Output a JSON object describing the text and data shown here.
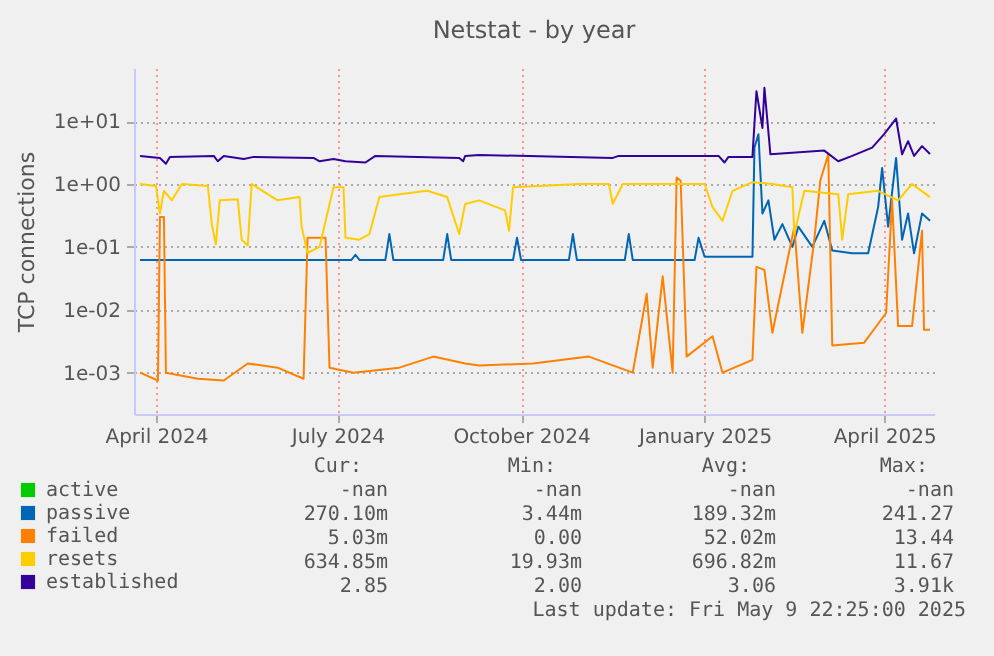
{
  "chart_data": {
    "type": "line",
    "title": "Netstat - by year",
    "ylabel": "TCP connections",
    "log": "y",
    "grid": true,
    "legend": "bottom",
    "xlim": [
      "2024-03-21",
      "2025-04-26"
    ],
    "xticks": [
      {
        "value": "2024-04-01",
        "label": "April 2024"
      },
      {
        "value": "2024-07-01",
        "label": "July 2024"
      },
      {
        "value": "2024-10-01",
        "label": "October 2024"
      },
      {
        "value": "2025-01-01",
        "label": "January 2025"
      },
      {
        "value": "2025-04-01",
        "label": "April 2025"
      }
    ],
    "ylim": [
      0.00022,
      70
    ],
    "yticks": [
      {
        "value": 0.001,
        "label": "1e-03"
      },
      {
        "value": 0.01,
        "label": "1e-02"
      },
      {
        "value": 0.1,
        "label": "1e-01"
      },
      {
        "value": 1,
        "label": "1e+00"
      },
      {
        "value": 10,
        "label": "1e+01"
      }
    ],
    "series": [
      {
        "name": "active",
        "color": "#00cc00"
      },
      {
        "name": "passive",
        "color": "#0066b3",
        "x": [
          "2024-03-24",
          "2024-07-08",
          "2024-07-10",
          "2024-07-12",
          "2024-07-25",
          "2024-07-27",
          "2024-07-29",
          "2024-08-23",
          "2024-08-25",
          "2024-08-27",
          "2024-09-27",
          "2024-09-29",
          "2024-10-01",
          "2024-10-25",
          "2024-10-27",
          "2024-10-29",
          "2024-11-22",
          "2024-11-24",
          "2024-11-26",
          "2024-12-27",
          "2024-12-29",
          "2025-01-01",
          "2025-01-25",
          "2025-01-26",
          "2025-01-28",
          "2025-01-30",
          "2025-02-02",
          "2025-02-05",
          "2025-02-09",
          "2025-02-14",
          "2025-02-17",
          "2025-02-24",
          "2025-03-02",
          "2025-03-06",
          "2025-03-16",
          "2025-03-24",
          "2025-03-29",
          "2025-03-31",
          "2025-04-03",
          "2025-04-07",
          "2025-04-10",
          "2025-04-13",
          "2025-04-16",
          "2025-04-20",
          "2025-04-24"
        ],
        "values": [
          0.062,
          0.062,
          0.075,
          0.062,
          0.062,
          0.16,
          0.062,
          0.062,
          0.16,
          0.062,
          0.062,
          0.14,
          0.062,
          0.062,
          0.16,
          0.062,
          0.062,
          0.16,
          0.062,
          0.062,
          0.14,
          0.07,
          0.07,
          3.8,
          6.2,
          0.34,
          0.55,
          0.13,
          0.23,
          0.1,
          0.21,
          0.1,
          0.26,
          0.088,
          0.079,
          0.079,
          0.43,
          1.8,
          0.21,
          2.6,
          0.13,
          0.34,
          0.079,
          0.34,
          0.26
        ]
      },
      {
        "name": "failed",
        "color": "#ff8000",
        "x": [
          "2024-03-24",
          "2024-04-02",
          "2024-04-03",
          "2024-04-05",
          "2024-04-06",
          "2024-04-22",
          "2024-05-05",
          "2024-05-17",
          "2024-06-01",
          "2024-06-14",
          "2024-06-16",
          "2024-06-25",
          "2024-06-27",
          "2024-07-09",
          "2024-08-01",
          "2024-08-18",
          "2024-09-03",
          "2024-09-10",
          "2024-10-07",
          "2024-11-04",
          "2024-11-26",
          "2024-12-03",
          "2024-12-06",
          "2024-12-11",
          "2024-12-16",
          "2024-12-18",
          "2024-12-20",
          "2024-12-23",
          "2025-01-05",
          "2025-01-10",
          "2025-01-25",
          "2025-01-27",
          "2025-01-31",
          "2025-02-04",
          "2025-02-15",
          "2025-02-19",
          "2025-02-25",
          "2025-02-28",
          "2025-03-04",
          "2025-03-06",
          "2025-03-22",
          "2025-03-29",
          "2025-04-02",
          "2025-04-05",
          "2025-04-08",
          "2025-04-15",
          "2025-04-20",
          "2025-04-21",
          "2025-04-24"
        ],
        "values": [
          0.001,
          0.00075,
          0.3,
          0.3,
          0.001,
          0.0008,
          0.00075,
          0.0014,
          0.0012,
          0.0008,
          0.14,
          0.14,
          0.0012,
          0.001,
          0.0012,
          0.0018,
          0.0014,
          0.0013,
          0.0014,
          0.0018,
          0.001,
          0.018,
          0.0012,
          0.034,
          0.001,
          1.27,
          1.13,
          0.0018,
          0.0038,
          0.001,
          0.0016,
          0.048,
          0.043,
          0.0043,
          0.21,
          0.0043,
          0.13,
          1.13,
          2.97,
          0.0027,
          0.003,
          0.006,
          0.0089,
          0.55,
          0.0055,
          0.0055,
          0.18,
          0.0048,
          0.0048
        ]
      },
      {
        "name": "resets",
        "color": "#ffcc00",
        "x": [
          "2024-03-24",
          "2024-04-01",
          "2024-04-03",
          "2024-04-05",
          "2024-04-09",
          "2024-04-14",
          "2024-04-27",
          "2024-04-29",
          "2024-05-01",
          "2024-05-03",
          "2024-05-12",
          "2024-05-14",
          "2024-05-17",
          "2024-05-19",
          "2024-06-01",
          "2024-06-12",
          "2024-06-13",
          "2024-06-16",
          "2024-06-22",
          "2024-06-29",
          "2024-07-04",
          "2024-07-05",
          "2024-07-12",
          "2024-07-17",
          "2024-07-22",
          "2024-08-01",
          "2024-08-15",
          "2024-08-25",
          "2024-08-31",
          "2024-09-03",
          "2024-09-10",
          "2024-09-23",
          "2024-09-25",
          "2024-09-27",
          "2024-10-30",
          "2024-11-14",
          "2024-11-16",
          "2024-11-21",
          "2025-01-01",
          "2025-01-05",
          "2025-01-10",
          "2025-01-15",
          "2025-01-25",
          "2025-02-04",
          "2025-02-14",
          "2025-02-15",
          "2025-02-20",
          "2025-03-09",
          "2025-03-11",
          "2025-03-14",
          "2025-03-29",
          "2025-04-08",
          "2025-04-15",
          "2025-04-24"
        ],
        "values": [
          1.0,
          0.93,
          0.34,
          0.78,
          0.55,
          1.0,
          0.93,
          0.23,
          0.11,
          0.55,
          0.57,
          0.13,
          0.105,
          1.0,
          0.55,
          0.62,
          0.21,
          0.08,
          0.1,
          0.89,
          0.89,
          0.14,
          0.13,
          0.16,
          0.62,
          0.69,
          0.78,
          0.62,
          0.16,
          0.48,
          0.55,
          0.38,
          0.18,
          0.89,
          1.0,
          1.0,
          0.48,
          1.0,
          1.0,
          0.43,
          0.26,
          0.78,
          1.07,
          1.0,
          0.89,
          0.16,
          0.78,
          0.69,
          0.13,
          0.69,
          0.78,
          0.55,
          1.0,
          0.62
        ]
      },
      {
        "name": "established",
        "color": "#330099",
        "x": [
          "2024-03-24",
          "2024-04-03",
          "2024-04-06",
          "2024-04-08",
          "2024-04-30",
          "2024-05-02",
          "2024-05-05",
          "2024-05-15",
          "2024-05-20",
          "2024-06-19",
          "2024-06-22",
          "2024-06-29",
          "2024-07-05",
          "2024-07-15",
          "2024-07-20",
          "2024-08-31",
          "2024-09-02",
          "2024-09-03",
          "2024-09-10",
          "2024-11-16",
          "2024-11-19",
          "2025-01-08",
          "2025-01-11",
          "2025-01-13",
          "2025-01-25",
          "2025-01-27",
          "2025-01-30",
          "2025-01-31",
          "2025-02-03",
          "2025-03-02",
          "2025-03-09",
          "2025-03-16",
          "2025-03-26",
          "2025-04-01",
          "2025-04-07",
          "2025-04-10",
          "2025-04-13",
          "2025-04-16",
          "2025-04-20",
          "2025-04-24"
        ],
        "values": [
          2.8,
          2.6,
          2.1,
          2.7,
          2.8,
          2.3,
          2.8,
          2.5,
          2.7,
          2.6,
          2.3,
          2.5,
          2.3,
          2.2,
          2.8,
          2.6,
          2.3,
          2.8,
          2.9,
          2.6,
          2.8,
          2.8,
          2.2,
          2.7,
          2.7,
          30,
          7.8,
          34,
          2.97,
          3.4,
          2.3,
          2.8,
          3.8,
          6.2,
          11,
          2.97,
          4.8,
          2.8,
          4.0,
          3.0
        ]
      }
    ],
    "annotations": [
      "Cur:",
      "Min:",
      "Avg:",
      "Max:",
      "-nan",
      "-nan",
      "-nan",
      "-nan",
      "270.10m",
      "3.44m",
      "189.32m",
      "241.27",
      "5.03m",
      "0.00",
      "52.02m",
      "13.44",
      "634.85m",
      "19.93m",
      "696.82m",
      "11.67",
      "2.85",
      "2.00",
      "3.06",
      "3.91k",
      "Last update: Fri May  9 22:25:00 2025"
    ]
  }
}
